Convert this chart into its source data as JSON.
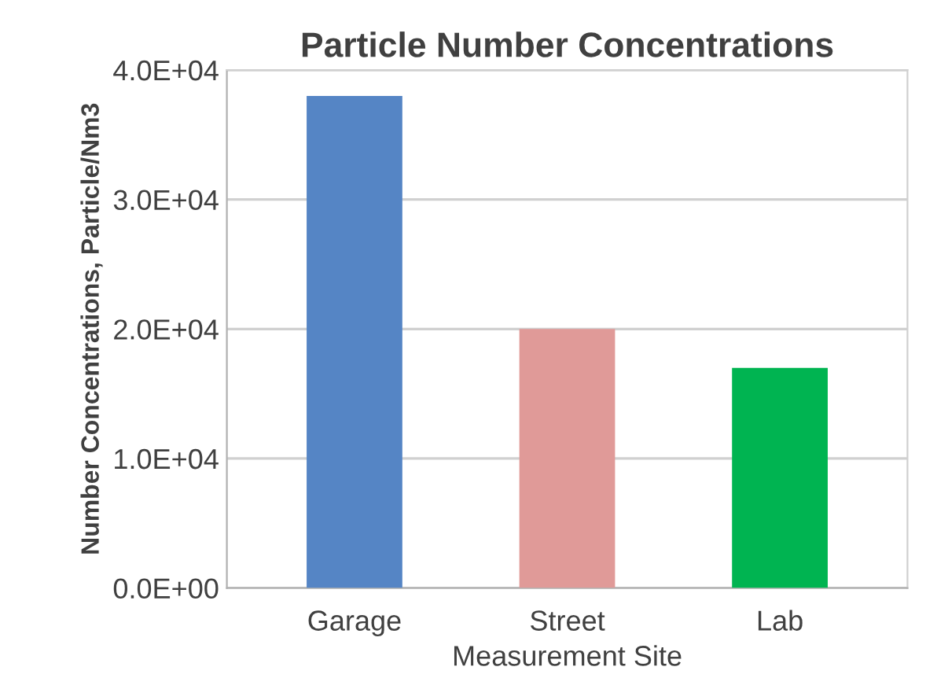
{
  "chart_data": {
    "type": "bar",
    "title": "Particle Number Concentrations",
    "xlabel": "Measurement Site",
    "ylabel": "Number Concentrations, Particle/Nm3",
    "categories": [
      "Garage",
      "Street",
      "Lab"
    ],
    "values": [
      38000,
      20000,
      17000
    ],
    "colors": [
      "#5585c5",
      "#e09a98",
      "#00b451"
    ],
    "ylim": [
      0,
      40000
    ],
    "yticks": [
      {
        "value": 0,
        "label": "0.0E+00"
      },
      {
        "value": 10000,
        "label": "1.0E+04"
      },
      {
        "value": 20000,
        "label": "2.0E+04"
      },
      {
        "value": 30000,
        "label": "3.0E+04"
      },
      {
        "value": 40000,
        "label": "4.0E+04"
      }
    ],
    "grid": "y"
  }
}
